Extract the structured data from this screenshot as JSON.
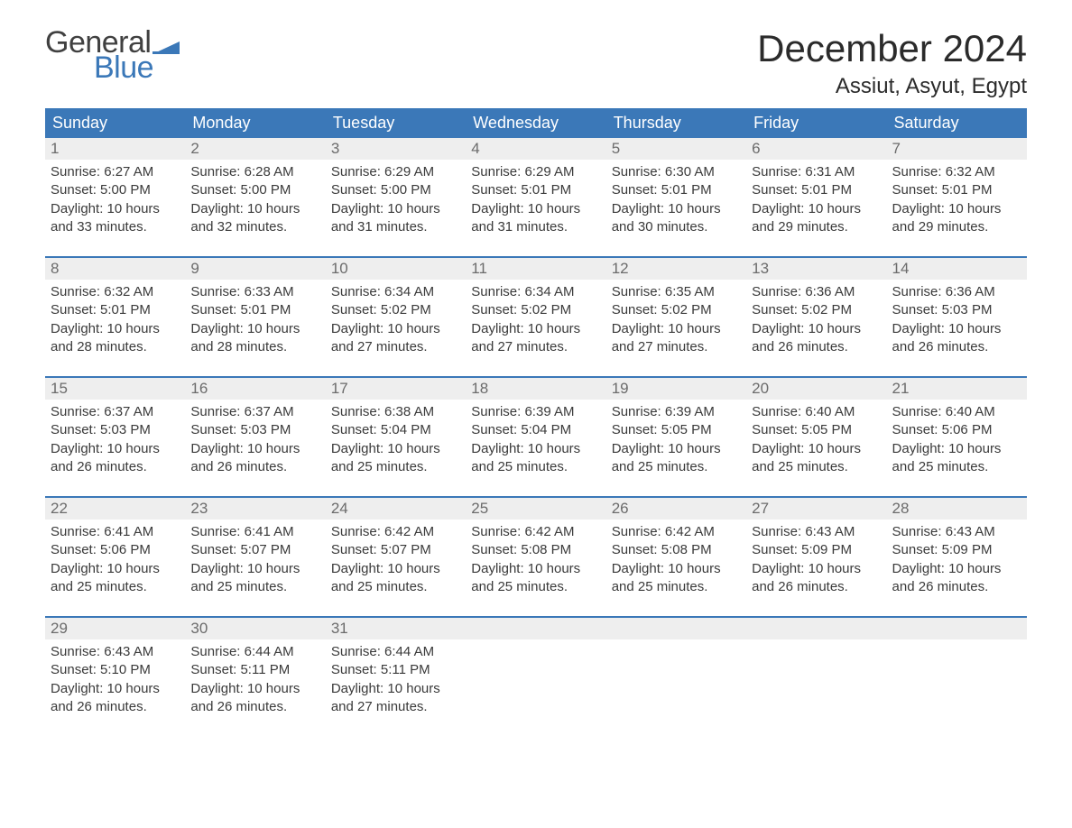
{
  "brand": {
    "word1": "General",
    "word2": "Blue",
    "word1_color": "#404040",
    "word2_color": "#3b78b8",
    "flag_color": "#3b78b8"
  },
  "title": "December 2024",
  "location": "Assiut, Asyut, Egypt",
  "colors": {
    "header_bg": "#3b78b8",
    "header_text": "#ffffff",
    "week_border": "#3b78b8",
    "daynum_bg": "#eeeeee",
    "daynum_text": "#6b6b6b",
    "body_text": "#3a3a3a",
    "page_bg": "#ffffff"
  },
  "typography": {
    "title_fontsize": 42,
    "location_fontsize": 24,
    "dow_fontsize": 18,
    "daynum_fontsize": 17,
    "body_fontsize": 15
  },
  "days_of_week": [
    "Sunday",
    "Monday",
    "Tuesday",
    "Wednesday",
    "Thursday",
    "Friday",
    "Saturday"
  ],
  "labels": {
    "sunrise": "Sunrise:",
    "sunset": "Sunset:",
    "daylight": "Daylight:"
  },
  "weeks": [
    [
      {
        "n": "1",
        "sunrise": "6:27 AM",
        "sunset": "5:00 PM",
        "daylight": "10 hours and 33 minutes."
      },
      {
        "n": "2",
        "sunrise": "6:28 AM",
        "sunset": "5:00 PM",
        "daylight": "10 hours and 32 minutes."
      },
      {
        "n": "3",
        "sunrise": "6:29 AM",
        "sunset": "5:00 PM",
        "daylight": "10 hours and 31 minutes."
      },
      {
        "n": "4",
        "sunrise": "6:29 AM",
        "sunset": "5:01 PM",
        "daylight": "10 hours and 31 minutes."
      },
      {
        "n": "5",
        "sunrise": "6:30 AM",
        "sunset": "5:01 PM",
        "daylight": "10 hours and 30 minutes."
      },
      {
        "n": "6",
        "sunrise": "6:31 AM",
        "sunset": "5:01 PM",
        "daylight": "10 hours and 29 minutes."
      },
      {
        "n": "7",
        "sunrise": "6:32 AM",
        "sunset": "5:01 PM",
        "daylight": "10 hours and 29 minutes."
      }
    ],
    [
      {
        "n": "8",
        "sunrise": "6:32 AM",
        "sunset": "5:01 PM",
        "daylight": "10 hours and 28 minutes."
      },
      {
        "n": "9",
        "sunrise": "6:33 AM",
        "sunset": "5:01 PM",
        "daylight": "10 hours and 28 minutes."
      },
      {
        "n": "10",
        "sunrise": "6:34 AM",
        "sunset": "5:02 PM",
        "daylight": "10 hours and 27 minutes."
      },
      {
        "n": "11",
        "sunrise": "6:34 AM",
        "sunset": "5:02 PM",
        "daylight": "10 hours and 27 minutes."
      },
      {
        "n": "12",
        "sunrise": "6:35 AM",
        "sunset": "5:02 PM",
        "daylight": "10 hours and 27 minutes."
      },
      {
        "n": "13",
        "sunrise": "6:36 AM",
        "sunset": "5:02 PM",
        "daylight": "10 hours and 26 minutes."
      },
      {
        "n": "14",
        "sunrise": "6:36 AM",
        "sunset": "5:03 PM",
        "daylight": "10 hours and 26 minutes."
      }
    ],
    [
      {
        "n": "15",
        "sunrise": "6:37 AM",
        "sunset": "5:03 PM",
        "daylight": "10 hours and 26 minutes."
      },
      {
        "n": "16",
        "sunrise": "6:37 AM",
        "sunset": "5:03 PM",
        "daylight": "10 hours and 26 minutes."
      },
      {
        "n": "17",
        "sunrise": "6:38 AM",
        "sunset": "5:04 PM",
        "daylight": "10 hours and 25 minutes."
      },
      {
        "n": "18",
        "sunrise": "6:39 AM",
        "sunset": "5:04 PM",
        "daylight": "10 hours and 25 minutes."
      },
      {
        "n": "19",
        "sunrise": "6:39 AM",
        "sunset": "5:05 PM",
        "daylight": "10 hours and 25 minutes."
      },
      {
        "n": "20",
        "sunrise": "6:40 AM",
        "sunset": "5:05 PM",
        "daylight": "10 hours and 25 minutes."
      },
      {
        "n": "21",
        "sunrise": "6:40 AM",
        "sunset": "5:06 PM",
        "daylight": "10 hours and 25 minutes."
      }
    ],
    [
      {
        "n": "22",
        "sunrise": "6:41 AM",
        "sunset": "5:06 PM",
        "daylight": "10 hours and 25 minutes."
      },
      {
        "n": "23",
        "sunrise": "6:41 AM",
        "sunset": "5:07 PM",
        "daylight": "10 hours and 25 minutes."
      },
      {
        "n": "24",
        "sunrise": "6:42 AM",
        "sunset": "5:07 PM",
        "daylight": "10 hours and 25 minutes."
      },
      {
        "n": "25",
        "sunrise": "6:42 AM",
        "sunset": "5:08 PM",
        "daylight": "10 hours and 25 minutes."
      },
      {
        "n": "26",
        "sunrise": "6:42 AM",
        "sunset": "5:08 PM",
        "daylight": "10 hours and 25 minutes."
      },
      {
        "n": "27",
        "sunrise": "6:43 AM",
        "sunset": "5:09 PM",
        "daylight": "10 hours and 26 minutes."
      },
      {
        "n": "28",
        "sunrise": "6:43 AM",
        "sunset": "5:09 PM",
        "daylight": "10 hours and 26 minutes."
      }
    ],
    [
      {
        "n": "29",
        "sunrise": "6:43 AM",
        "sunset": "5:10 PM",
        "daylight": "10 hours and 26 minutes."
      },
      {
        "n": "30",
        "sunrise": "6:44 AM",
        "sunset": "5:11 PM",
        "daylight": "10 hours and 26 minutes."
      },
      {
        "n": "31",
        "sunrise": "6:44 AM",
        "sunset": "5:11 PM",
        "daylight": "10 hours and 27 minutes."
      },
      {
        "empty": true
      },
      {
        "empty": true
      },
      {
        "empty": true
      },
      {
        "empty": true
      }
    ]
  ]
}
